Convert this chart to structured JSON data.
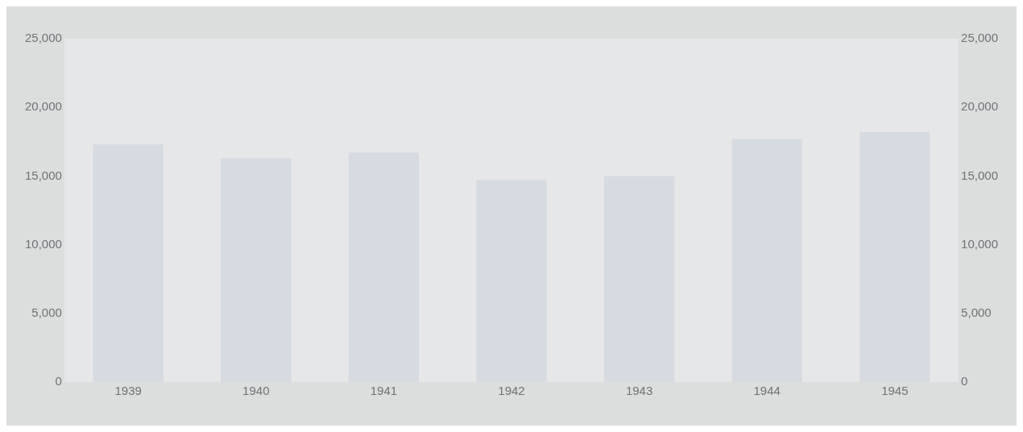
{
  "chart_data": {
    "type": "bar",
    "categories": [
      "1939",
      "1940",
      "1941",
      "1942",
      "1943",
      "1944",
      "1945"
    ],
    "series": [
      {
        "color": "#d6dae1",
        "values": [
          17300,
          16300,
          16700,
          14700,
          15000,
          17700,
          18200
        ]
      }
    ],
    "ylim": [
      0,
      25000
    ],
    "yticks": [
      {
        "value": 0,
        "label": "0"
      },
      {
        "value": 5000,
        "label": "5,000"
      },
      {
        "value": 10000,
        "label": "10,000"
      },
      {
        "value": 15000,
        "label": "15,000"
      },
      {
        "value": 20000,
        "label": "20,000"
      },
      {
        "value": 25000,
        "label": "25,000"
      }
    ],
    "y2lim": [
      0,
      25000
    ],
    "y2ticks": [
      {
        "value": 0,
        "label": "0"
      },
      {
        "value": 5000,
        "label": "5,000"
      },
      {
        "value": 10000,
        "label": "10,000"
      },
      {
        "value": 15000,
        "label": "15,000"
      },
      {
        "value": 20000,
        "label": "20,000"
      },
      {
        "value": 25000,
        "label": "25,000"
      }
    ],
    "grid": false,
    "legend": false
  }
}
